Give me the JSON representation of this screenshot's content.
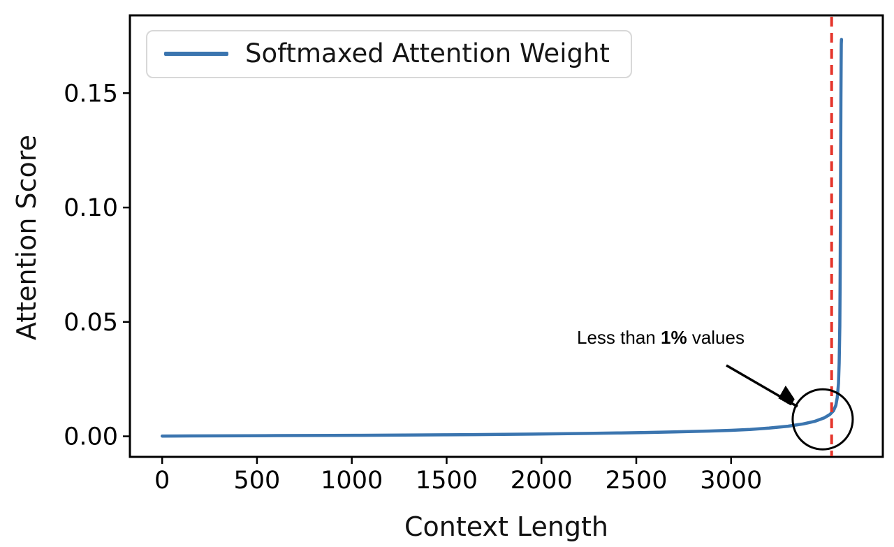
{
  "chart_data": {
    "type": "line",
    "title": "",
    "xlabel": "Context Length",
    "ylabel": "Attention Score",
    "xlim": [
      -170,
      3800
    ],
    "ylim": [
      -0.009,
      0.184
    ],
    "xticks": [
      0,
      500,
      1000,
      1500,
      2000,
      2500,
      3000
    ],
    "yticks": [
      "0.00",
      "0.05",
      "0.10",
      "0.15"
    ],
    "grid": false,
    "legend_position": "upper left",
    "axis_color": "#000000",
    "series": [
      {
        "name": "Softmaxed Attention Weight",
        "color": "#3b75af",
        "points": [
          [
            0,
            0.0001
          ],
          [
            150,
            0.00015
          ],
          [
            300,
            0.0002
          ],
          [
            450,
            0.00025
          ],
          [
            600,
            0.0003
          ],
          [
            750,
            0.00035
          ],
          [
            900,
            0.0004
          ],
          [
            1050,
            0.00045
          ],
          [
            1200,
            0.0005
          ],
          [
            1350,
            0.00058
          ],
          [
            1500,
            0.00066
          ],
          [
            1650,
            0.00075
          ],
          [
            1800,
            0.00085
          ],
          [
            1950,
            0.00096
          ],
          [
            2100,
            0.0011
          ],
          [
            2250,
            0.00125
          ],
          [
            2400,
            0.00143
          ],
          [
            2550,
            0.00165
          ],
          [
            2700,
            0.0019
          ],
          [
            2850,
            0.0022
          ],
          [
            3000,
            0.0026
          ],
          [
            3100,
            0.003
          ],
          [
            3200,
            0.0036
          ],
          [
            3300,
            0.0044
          ],
          [
            3380,
            0.0054
          ],
          [
            3440,
            0.0065
          ],
          [
            3490,
            0.008
          ],
          [
            3520,
            0.0095
          ],
          [
            3540,
            0.0112
          ],
          [
            3552,
            0.0135
          ],
          [
            3560,
            0.017
          ],
          [
            3566,
            0.023
          ],
          [
            3570,
            0.032
          ],
          [
            3573,
            0.048
          ],
          [
            3575,
            0.07
          ],
          [
            3577,
            0.1
          ],
          [
            3578,
            0.125
          ],
          [
            3579,
            0.148
          ],
          [
            3580,
            0.163
          ],
          [
            3581,
            0.1715
          ],
          [
            3582,
            0.1735
          ]
        ]
      }
    ],
    "vline": {
      "x": 3530,
      "color": "#e5352b",
      "style": "dashed"
    },
    "annotation": {
      "prefix": "Less than ",
      "bold": "1%",
      "suffix": " values",
      "arrow_from": [
        2975,
        0.031
      ],
      "arrow_to": [
        3350,
        0.013
      ],
      "circle_center": [
        3483,
        0.0074
      ],
      "circle_radius_px": 43
    }
  },
  "legend": {
    "label": "Softmaxed Attention Weight"
  }
}
